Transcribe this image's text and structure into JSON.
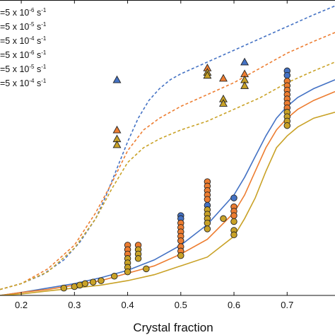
{
  "chart_data": {
    "type": "scatter",
    "title": "",
    "xlabel": "Crystal fraction",
    "ylabel": "",
    "xlim": [
      0.16,
      0.79
    ],
    "ylim": [
      0,
      1
    ],
    "grid": false,
    "legend_position": "top-left",
    "x_ticks": [
      {
        "value": 0.2,
        "label": "0.2"
      },
      {
        "value": 0.3,
        "label": "0.3"
      },
      {
        "value": 0.4,
        "label": "0.4"
      },
      {
        "value": 0.5,
        "label": "0.5"
      },
      {
        "value": 0.6,
        "label": "0.6"
      },
      {
        "value": 0.7,
        "label": "0.7"
      }
    ],
    "legend": [
      {
        "prefix": "=5 x 10",
        "exp": "-6",
        "unit": " s",
        "unit_exp": "-1",
        "marker": "line",
        "color": "#4472C4"
      },
      {
        "prefix": "=5 x 10",
        "exp": "-5",
        "unit": " s",
        "unit_exp": "-1",
        "marker": "line",
        "color": "#ED7D31"
      },
      {
        "prefix": "=5 x 10",
        "exp": "-4",
        "unit": " s",
        "unit_exp": "-1",
        "marker": "line",
        "color": "#C9A227"
      },
      {
        "prefix": "=5 x 10",
        "exp": "-6",
        "unit": " s",
        "unit_exp": "-1",
        "marker": "line",
        "color": "#4472C4"
      },
      {
        "prefix": "=5 x 10",
        "exp": "-5",
        "unit": " s",
        "unit_exp": "-1",
        "marker": "line",
        "color": "#ED7D31"
      },
      {
        "prefix": "=5 x 10",
        "exp": "-4",
        "unit": " s",
        "unit_exp": "-1",
        "marker": "line",
        "color": "#C9A227"
      }
    ],
    "colors": {
      "blue": "#4472C4",
      "orange": "#ED7D31",
      "gold": "#C9A227",
      "edge": "#222222"
    },
    "lines": [
      {
        "style": "dashed",
        "color": "#4472C4",
        "x": [
          0.16,
          0.2,
          0.24,
          0.28,
          0.31,
          0.34,
          0.36,
          0.38,
          0.4,
          0.42,
          0.44,
          0.46,
          0.48,
          0.5,
          0.55,
          0.6,
          0.65,
          0.7,
          0.75,
          0.79
        ],
        "y": [
          0.02,
          0.04,
          0.07,
          0.12,
          0.18,
          0.26,
          0.34,
          0.43,
          0.52,
          0.6,
          0.66,
          0.7,
          0.73,
          0.75,
          0.79,
          0.83,
          0.87,
          0.91,
          0.95,
          0.98
        ]
      },
      {
        "style": "dashed",
        "color": "#ED7D31",
        "x": [
          0.16,
          0.2,
          0.25,
          0.3,
          0.34,
          0.37,
          0.4,
          0.43,
          0.46,
          0.5,
          0.55,
          0.6,
          0.65,
          0.7,
          0.75,
          0.79
        ],
        "y": [
          0.02,
          0.04,
          0.09,
          0.17,
          0.28,
          0.38,
          0.49,
          0.56,
          0.6,
          0.64,
          0.68,
          0.72,
          0.77,
          0.82,
          0.86,
          0.89
        ]
      },
      {
        "style": "dashed",
        "color": "#C9A227",
        "x": [
          0.16,
          0.2,
          0.25,
          0.3,
          0.34,
          0.37,
          0.4,
          0.43,
          0.46,
          0.5,
          0.55,
          0.6,
          0.65,
          0.7,
          0.75,
          0.79
        ],
        "y": [
          0.02,
          0.04,
          0.08,
          0.16,
          0.26,
          0.36,
          0.45,
          0.5,
          0.53,
          0.56,
          0.59,
          0.63,
          0.67,
          0.72,
          0.76,
          0.79
        ]
      },
      {
        "style": "solid",
        "color": "#4472C4",
        "x": [
          0.16,
          0.2,
          0.25,
          0.3,
          0.35,
          0.4,
          0.45,
          0.5,
          0.55,
          0.6,
          0.62,
          0.64,
          0.66,
          0.68,
          0.7,
          0.72,
          0.75,
          0.79
        ],
        "y": [
          0.0,
          0.01,
          0.025,
          0.04,
          0.06,
          0.085,
          0.12,
          0.17,
          0.24,
          0.34,
          0.4,
          0.47,
          0.54,
          0.6,
          0.64,
          0.67,
          0.7,
          0.73
        ]
      },
      {
        "style": "solid",
        "color": "#ED7D31",
        "x": [
          0.16,
          0.2,
          0.25,
          0.3,
          0.35,
          0.4,
          0.45,
          0.5,
          0.55,
          0.6,
          0.62,
          0.64,
          0.66,
          0.68,
          0.7,
          0.72,
          0.75,
          0.79
        ],
        "y": [
          0.0,
          0.01,
          0.02,
          0.035,
          0.05,
          0.075,
          0.1,
          0.14,
          0.19,
          0.28,
          0.34,
          0.42,
          0.5,
          0.56,
          0.6,
          0.63,
          0.66,
          0.69
        ]
      },
      {
        "style": "solid",
        "color": "#C9A227",
        "x": [
          0.16,
          0.2,
          0.25,
          0.3,
          0.35,
          0.4,
          0.45,
          0.5,
          0.55,
          0.6,
          0.62,
          0.64,
          0.66,
          0.68,
          0.7,
          0.72,
          0.75,
          0.79
        ],
        "y": [
          0.0,
          0.005,
          0.015,
          0.025,
          0.035,
          0.05,
          0.07,
          0.1,
          0.13,
          0.2,
          0.26,
          0.33,
          0.42,
          0.5,
          0.54,
          0.57,
          0.6,
          0.62
        ]
      }
    ],
    "triangles": [
      {
        "x": 0.38,
        "y": 0.73,
        "color": "#4472C4"
      },
      {
        "x": 0.38,
        "y": 0.56,
        "color": "#ED7D31"
      },
      {
        "x": 0.38,
        "y": 0.53,
        "color": "#C9A227"
      },
      {
        "x": 0.38,
        "y": 0.51,
        "color": "#C9A227"
      },
      {
        "x": 0.55,
        "y": 0.77,
        "color": "#ED7D31"
      },
      {
        "x": 0.55,
        "y": 0.755,
        "color": "#C9A227"
      },
      {
        "x": 0.55,
        "y": 0.745,
        "color": "#C9A227"
      },
      {
        "x": 0.58,
        "y": 0.735,
        "color": "#ED7D31"
      },
      {
        "x": 0.58,
        "y": 0.665,
        "color": "#C9A227"
      },
      {
        "x": 0.58,
        "y": 0.65,
        "color": "#C9A227"
      },
      {
        "x": 0.62,
        "y": 0.79,
        "color": "#4472C4"
      },
      {
        "x": 0.62,
        "y": 0.75,
        "color": "#ED7D31"
      },
      {
        "x": 0.62,
        "y": 0.73,
        "color": "#C9A227"
      },
      {
        "x": 0.62,
        "y": 0.71,
        "color": "#C9A227"
      }
    ],
    "circles": [
      {
        "x": 0.28,
        "y": 0.025,
        "color": "#C9A227"
      },
      {
        "x": 0.3,
        "y": 0.03,
        "color": "#C9A227"
      },
      {
        "x": 0.31,
        "y": 0.035,
        "color": "#C9A227"
      },
      {
        "x": 0.32,
        "y": 0.04,
        "color": "#C9A227"
      },
      {
        "x": 0.335,
        "y": 0.045,
        "color": "#C9A227"
      },
      {
        "x": 0.35,
        "y": 0.05,
        "color": "#C9A227"
      },
      {
        "x": 0.375,
        "y": 0.065,
        "color": "#C9A227"
      },
      {
        "x": 0.4,
        "y": 0.17,
        "color": "#ED7D31"
      },
      {
        "x": 0.4,
        "y": 0.155,
        "color": "#ED7D31"
      },
      {
        "x": 0.4,
        "y": 0.14,
        "color": "#ED7D31"
      },
      {
        "x": 0.4,
        "y": 0.125,
        "color": "#C9A227"
      },
      {
        "x": 0.4,
        "y": 0.11,
        "color": "#C9A227"
      },
      {
        "x": 0.4,
        "y": 0.095,
        "color": "#C9A227"
      },
      {
        "x": 0.4,
        "y": 0.08,
        "color": "#C9A227"
      },
      {
        "x": 0.42,
        "y": 0.17,
        "color": "#ED7D31"
      },
      {
        "x": 0.42,
        "y": 0.155,
        "color": "#C9A227"
      },
      {
        "x": 0.42,
        "y": 0.14,
        "color": "#C9A227"
      },
      {
        "x": 0.42,
        "y": 0.125,
        "color": "#C9A227"
      },
      {
        "x": 0.435,
        "y": 0.09,
        "color": "#C9A227"
      },
      {
        "x": 0.5,
        "y": 0.27,
        "color": "#4472C4"
      },
      {
        "x": 0.5,
        "y": 0.26,
        "color": "#4472C4"
      },
      {
        "x": 0.5,
        "y": 0.245,
        "color": "#ED7D31"
      },
      {
        "x": 0.5,
        "y": 0.23,
        "color": "#ED7D31"
      },
      {
        "x": 0.5,
        "y": 0.215,
        "color": "#ED7D31"
      },
      {
        "x": 0.5,
        "y": 0.2,
        "color": "#ED7D31"
      },
      {
        "x": 0.5,
        "y": 0.185,
        "color": "#ED7D31"
      },
      {
        "x": 0.5,
        "y": 0.165,
        "color": "#ED7D31"
      },
      {
        "x": 0.5,
        "y": 0.15,
        "color": "#ED7D31"
      },
      {
        "x": 0.5,
        "y": 0.135,
        "color": "#C9A227"
      },
      {
        "x": 0.55,
        "y": 0.385,
        "color": "#ED7D31"
      },
      {
        "x": 0.55,
        "y": 0.37,
        "color": "#ED7D31"
      },
      {
        "x": 0.55,
        "y": 0.355,
        "color": "#ED7D31"
      },
      {
        "x": 0.55,
        "y": 0.34,
        "color": "#ED7D31"
      },
      {
        "x": 0.55,
        "y": 0.325,
        "color": "#ED7D31"
      },
      {
        "x": 0.55,
        "y": 0.305,
        "color": "#4472C4"
      },
      {
        "x": 0.55,
        "y": 0.29,
        "color": "#C9A227"
      },
      {
        "x": 0.55,
        "y": 0.275,
        "color": "#C9A227"
      },
      {
        "x": 0.55,
        "y": 0.26,
        "color": "#C9A227"
      },
      {
        "x": 0.55,
        "y": 0.245,
        "color": "#C9A227"
      },
      {
        "x": 0.55,
        "y": 0.225,
        "color": "#C9A227"
      },
      {
        "x": 0.58,
        "y": 0.26,
        "color": "#C9A227"
      },
      {
        "x": 0.6,
        "y": 0.33,
        "color": "#4472C4"
      },
      {
        "x": 0.6,
        "y": 0.3,
        "color": "#ED7D31"
      },
      {
        "x": 0.6,
        "y": 0.285,
        "color": "#ED7D31"
      },
      {
        "x": 0.6,
        "y": 0.27,
        "color": "#ED7D31"
      },
      {
        "x": 0.6,
        "y": 0.25,
        "color": "#C9A227"
      },
      {
        "x": 0.6,
        "y": 0.22,
        "color": "#C9A227"
      },
      {
        "x": 0.6,
        "y": 0.205,
        "color": "#C9A227"
      },
      {
        "x": 0.7,
        "y": 0.76,
        "color": "#4472C4"
      },
      {
        "x": 0.7,
        "y": 0.745,
        "color": "#4472C4"
      },
      {
        "x": 0.7,
        "y": 0.725,
        "color": "#ED7D31"
      },
      {
        "x": 0.7,
        "y": 0.71,
        "color": "#ED7D31"
      },
      {
        "x": 0.7,
        "y": 0.695,
        "color": "#ED7D31"
      },
      {
        "x": 0.7,
        "y": 0.68,
        "color": "#ED7D31"
      },
      {
        "x": 0.7,
        "y": 0.665,
        "color": "#ED7D31"
      },
      {
        "x": 0.7,
        "y": 0.65,
        "color": "#ED7D31"
      },
      {
        "x": 0.7,
        "y": 0.635,
        "color": "#ED7D31"
      },
      {
        "x": 0.7,
        "y": 0.62,
        "color": "#C9A227"
      },
      {
        "x": 0.7,
        "y": 0.605,
        "color": "#C9A227"
      },
      {
        "x": 0.7,
        "y": 0.59,
        "color": "#C9A227"
      },
      {
        "x": 0.7,
        "y": 0.575,
        "color": "#C9A227"
      }
    ]
  }
}
